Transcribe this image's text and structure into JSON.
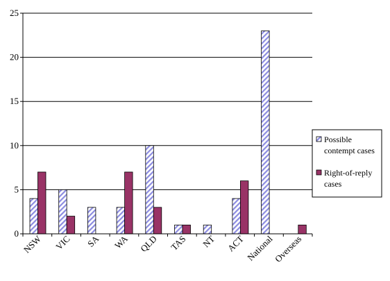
{
  "chart_data": {
    "type": "bar",
    "categories": [
      "NSW",
      "VIC",
      "SA",
      "WA",
      "QLD",
      "TAS",
      "NT",
      "ACT",
      "National",
      "Overseas"
    ],
    "series": [
      {
        "name": "Possible contempt cases",
        "values": [
          4,
          5,
          3,
          3,
          10,
          1,
          1,
          4,
          23,
          0
        ]
      },
      {
        "name": "Right-of-reply cases",
        "values": [
          7,
          2,
          0,
          7,
          3,
          1,
          0,
          6,
          0,
          1
        ]
      }
    ],
    "ylim": [
      0,
      25
    ],
    "yticks": [
      "0",
      "5",
      "10",
      "15",
      "20",
      "25"
    ],
    "grid": true,
    "legend": {
      "placement": "right",
      "items": [
        {
          "lines": [
            "Possible",
            "contempt cases"
          ]
        },
        {
          "lines": [
            "Right-of-reply",
            "cases"
          ]
        }
      ]
    },
    "colors": {
      "contempt_stripe": "#8c8ce0",
      "reply_fill": "#993366",
      "gridline": "#000000"
    }
  }
}
